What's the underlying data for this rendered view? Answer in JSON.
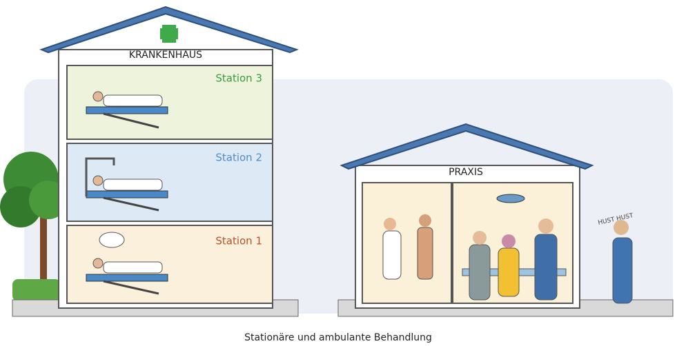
{
  "hospital": {
    "label": "KRANKENHAUS",
    "stations": [
      "Station 3",
      "Station 2",
      "Station 1"
    ]
  },
  "practice": {
    "label": "PRAXIS"
  },
  "speech": "HUST HUST",
  "caption": "Stationäre und ambulante Behandlung"
}
